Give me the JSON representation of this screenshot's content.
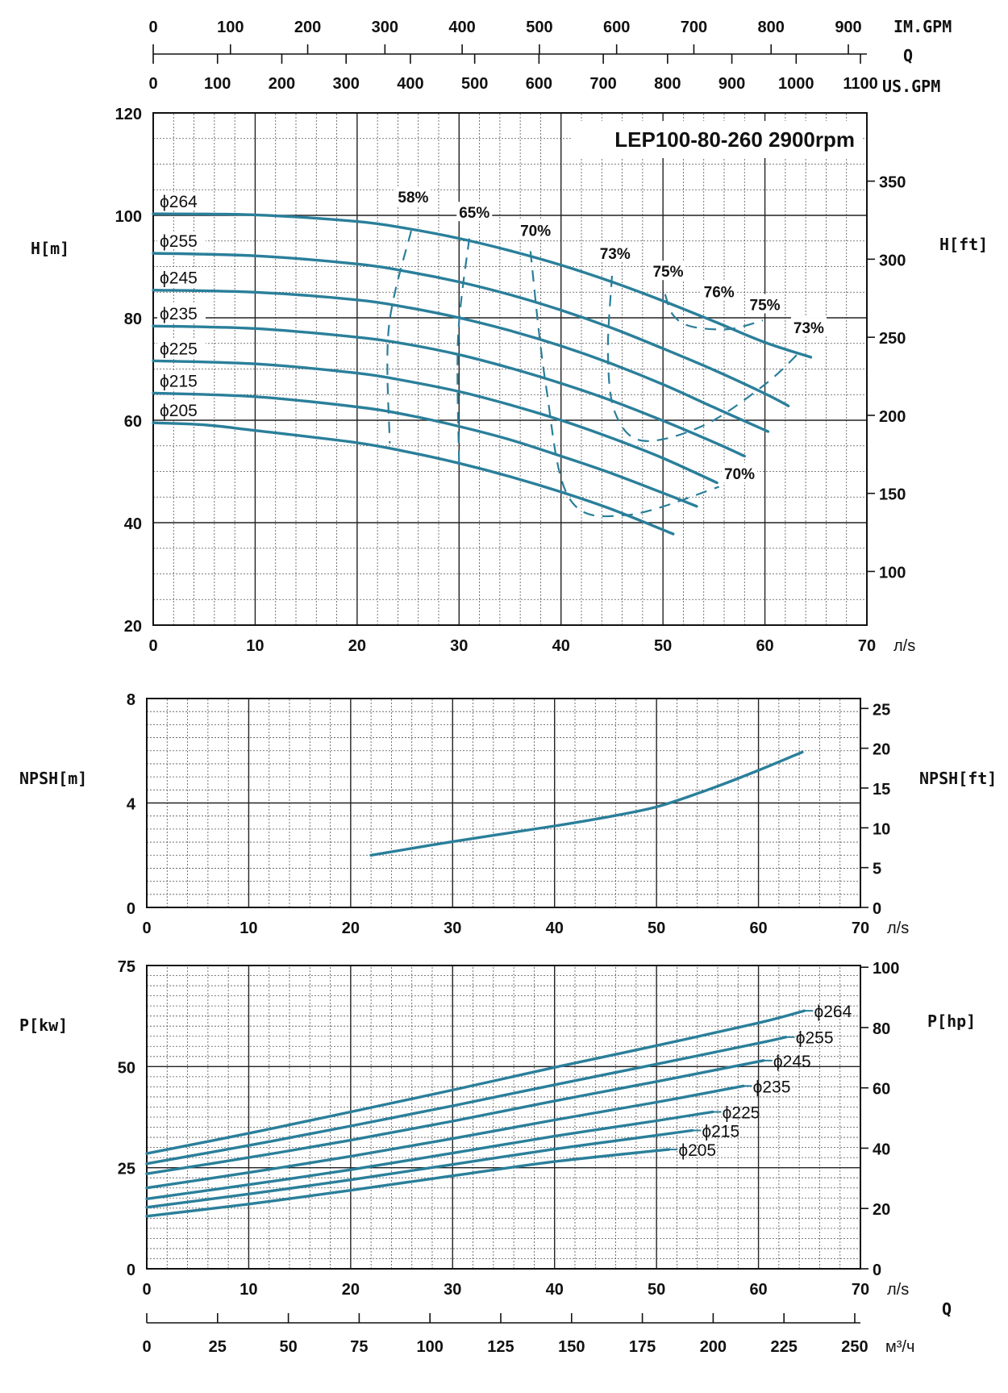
{
  "chart_data": [
    {
      "id": "head",
      "type": "line",
      "title": "LEP100-80-260 2900rpm",
      "xunit": "л/s",
      "ylabel": "H[m]",
      "ylabel_right": "H[ft]",
      "xlim": [
        0,
        70
      ],
      "ylim": [
        20,
        120
      ],
      "xticks": [
        0,
        10,
        20,
        30,
        40,
        50,
        60,
        70
      ],
      "yticks": [
        20,
        40,
        60,
        80,
        100,
        120
      ],
      "yticks_right": [
        100,
        150,
        200,
        250,
        300,
        350
      ],
      "grid": true,
      "series": [
        {
          "name": "ϕ264",
          "x": [
            0,
            10,
            20,
            25,
            30,
            35,
            40,
            45,
            50,
            55,
            60,
            64.5
          ],
          "y": [
            100.3,
            100.1,
            98.8,
            97.4,
            95.5,
            93.1,
            90.3,
            87.0,
            83.3,
            79.3,
            75.2,
            72.3
          ]
        },
        {
          "name": "ϕ255",
          "x": [
            0,
            10,
            20,
            25,
            30,
            35,
            40,
            45,
            50,
            55,
            60,
            62.3
          ],
          "y": [
            92.6,
            92.1,
            90.5,
            89.0,
            87.0,
            84.5,
            81.5,
            78.0,
            74.0,
            69.8,
            65.2,
            62.8
          ]
        },
        {
          "name": "ϕ245",
          "x": [
            0,
            10,
            20,
            25,
            30,
            35,
            40,
            45,
            50,
            55,
            60.3
          ],
          "y": [
            85.4,
            85.0,
            83.5,
            82.0,
            80.0,
            77.5,
            74.5,
            71.0,
            67.0,
            62.5,
            57.8
          ]
        },
        {
          "name": "ϕ235",
          "x": [
            0,
            10,
            20,
            25,
            30,
            35,
            40,
            45,
            50,
            55,
            58
          ],
          "y": [
            78.4,
            77.9,
            76.2,
            74.8,
            72.8,
            70.2,
            67.2,
            63.8,
            59.9,
            55.7,
            53.0
          ]
        },
        {
          "name": "ϕ225",
          "x": [
            0,
            10,
            20,
            25,
            30,
            35,
            40,
            45,
            50,
            55.3
          ],
          "y": [
            71.6,
            71.0,
            69.2,
            67.6,
            65.6,
            63.0,
            60.0,
            56.5,
            52.6,
            47.8
          ]
        },
        {
          "name": "ϕ215",
          "x": [
            0,
            10,
            20,
            25,
            30,
            35,
            40,
            45,
            50,
            53.3
          ],
          "y": [
            65.3,
            64.6,
            62.6,
            61.0,
            58.8,
            56.2,
            53.0,
            49.6,
            45.8,
            43.2
          ]
        },
        {
          "name": "ϕ205",
          "x": [
            0,
            5,
            10,
            20,
            25,
            30,
            35,
            40,
            45,
            51
          ],
          "y": [
            59.5,
            59.1,
            58.0,
            55.6,
            53.8,
            51.6,
            49.0,
            46.0,
            42.6,
            37.8
          ]
        }
      ],
      "efficiency": [
        {
          "label": "58%",
          "x": [
            25.3,
            23.1,
            23.2
          ],
          "y": [
            97.0,
            78,
            55.5
          ],
          "label_x": 25.5,
          "label_y": 102.5
        },
        {
          "label": "65%",
          "x": [
            31.0,
            29.9,
            30.0
          ],
          "y": [
            95.5,
            76,
            51.5
          ],
          "label_x": 31.5,
          "label_y": 99.5
        },
        {
          "label": "70%",
          "x": [
            37.0,
            38.5,
            40.8,
            46.5,
            55.5
          ],
          "y": [
            93.0,
            67,
            44.8,
            41.5,
            47.0
          ],
          "label_x": 37.5,
          "label_y": 96.0,
          "label2": "70%",
          "label2_x": 57.5,
          "label2_y": 48.5
        },
        {
          "label": "73%",
          "x": [
            45.0,
            44.6,
            45.3,
            48.0,
            54,
            60,
            63.5
          ],
          "y": [
            88.2,
            73,
            61.5,
            56.0,
            59.0,
            67.0,
            73.5
          ],
          "label_x": 45.3,
          "label_y": 91.5,
          "label2": "73%",
          "label2_x": 64.3,
          "label2_y": 77.0
        },
        {
          "label": "75%",
          "x": [
            50.2,
            51.0,
            52.8,
            56.5,
            59.8
          ],
          "y": [
            84.6,
            80.5,
            78.3,
            77.8,
            79.5
          ],
          "label_x": 50.5,
          "label_y": 88.0,
          "label2": "75%",
          "label2_x": 60.0,
          "label2_y": 81.5
        },
        {
          "label": "76%",
          "x": [],
          "y": [],
          "label_x": 55.5,
          "label_y": 84.0
        }
      ],
      "top_axes": [
        {
          "label": "IM.GPM",
          "max": 900,
          "scale_max": 924,
          "ticks": [
            0,
            100,
            200,
            300,
            400,
            500,
            600,
            700,
            800,
            900
          ]
        },
        {
          "label": "US.GPM",
          "max": 1100,
          "scale_max": 1110,
          "ticks": [
            0,
            100,
            200,
            300,
            400,
            500,
            600,
            700,
            800,
            900,
            1000,
            1100
          ]
        }
      ],
      "q_label": "Q"
    },
    {
      "id": "npsh",
      "type": "line",
      "xunit": "л/s",
      "ylabel": "NPSH[m]",
      "ylabel_right": "NPSH[ft]",
      "xlim": [
        0,
        70
      ],
      "ylim": [
        0,
        8
      ],
      "xticks": [
        0,
        10,
        20,
        30,
        40,
        50,
        60,
        70
      ],
      "yticks": [
        0,
        4,
        8
      ],
      "yticks_right": [
        0,
        5,
        10,
        15,
        20,
        25
      ],
      "grid": true,
      "series": [
        {
          "name": "NPSH",
          "x": [
            22,
            30,
            40,
            45,
            50,
            55,
            60,
            64.3
          ],
          "y": [
            2.0,
            2.52,
            3.12,
            3.45,
            3.85,
            4.5,
            5.25,
            5.95
          ]
        }
      ]
    },
    {
      "id": "power",
      "type": "line",
      "xunit": "л/s",
      "ylabel": "P[kw]",
      "ylabel_right": "P[hp]",
      "xlim": [
        0,
        70
      ],
      "ylim": [
        0,
        75
      ],
      "xticks": [
        0,
        10,
        20,
        30,
        40,
        50,
        60,
        70
      ],
      "yticks": [
        0,
        25,
        50,
        75
      ],
      "yticks_right": [
        0,
        20,
        40,
        60,
        80,
        100
      ],
      "grid": true,
      "series": [
        {
          "name": "ϕ264",
          "x": [
            0,
            10,
            20,
            30,
            40,
            50,
            60,
            64.5
          ],
          "y": [
            28.5,
            33.5,
            38.8,
            44.2,
            49.8,
            55.2,
            60.8,
            63.8
          ]
        },
        {
          "name": "ϕ255",
          "x": [
            0,
            10,
            20,
            30,
            40,
            50,
            60,
            62.7
          ],
          "y": [
            26.0,
            30.5,
            35.3,
            40.3,
            45.5,
            50.6,
            55.8,
            57.3
          ]
        },
        {
          "name": "ϕ245",
          "x": [
            0,
            10,
            20,
            30,
            40,
            50,
            60.5
          ],
          "y": [
            23.5,
            27.5,
            31.8,
            36.5,
            41.5,
            46.3,
            51.5
          ]
        },
        {
          "name": "ϕ235",
          "x": [
            0,
            10,
            20,
            30,
            40,
            50,
            58.5
          ],
          "y": [
            20.0,
            23.8,
            27.8,
            32.2,
            36.8,
            41.2,
            45.2
          ]
        },
        {
          "name": "ϕ225",
          "x": [
            0,
            10,
            20,
            30,
            40,
            50,
            55.5
          ],
          "y": [
            17.3,
            20.8,
            24.5,
            28.6,
            32.8,
            36.6,
            38.8
          ]
        },
        {
          "name": "ϕ215",
          "x": [
            0,
            10,
            20,
            30,
            40,
            50,
            53.5
          ],
          "y": [
            15.2,
            18.5,
            22.0,
            25.8,
            29.6,
            33.0,
            34.2
          ]
        },
        {
          "name": "ϕ205",
          "x": [
            0,
            10,
            20,
            30,
            40,
            50,
            51.2
          ],
          "y": [
            13.0,
            16.0,
            19.4,
            23.0,
            26.5,
            29.2,
            29.5
          ]
        }
      ],
      "bottom_axis": {
        "unit": "м³/ч",
        "max": 250,
        "scale_max": 252,
        "ticks": [
          0,
          25,
          50,
          75,
          100,
          125,
          150,
          175,
          200,
          225,
          250
        ]
      },
      "q_label": "Q"
    }
  ],
  "colors": {
    "curve": "#2a7f9a",
    "grid": "#555555",
    "axis": "#111111"
  }
}
